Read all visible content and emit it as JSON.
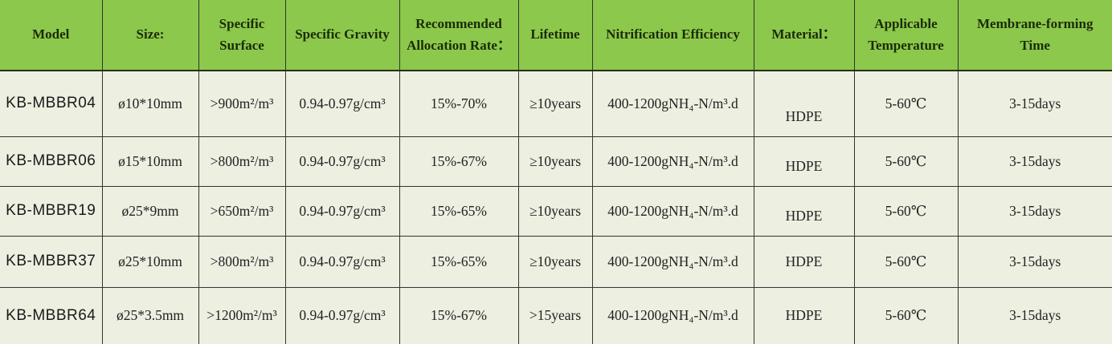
{
  "colors": {
    "header_background": "#8CC84B",
    "header_text": "#1a2b08",
    "body_background": "#EDEFE1",
    "body_text": "#222222",
    "border": "#333333"
  },
  "table": {
    "columns": [
      {
        "key": "model",
        "label": "Model"
      },
      {
        "key": "size",
        "label": "Size:"
      },
      {
        "key": "specific_surface",
        "label": "Specific Surface"
      },
      {
        "key": "specific_gravity",
        "label": "Specific Gravity"
      },
      {
        "key": "allocation_rate",
        "label": "Recommended Allocation Rate："
      },
      {
        "key": "lifetime",
        "label": "Lifetime"
      },
      {
        "key": "nitrification",
        "label": "Nitrification Efficiency"
      },
      {
        "key": "material",
        "label": "Material："
      },
      {
        "key": "temperature",
        "label": "Applicable Temperature"
      },
      {
        "key": "membrane_time",
        "label": "Membrane-forming Time"
      }
    ],
    "rows": [
      {
        "model": "KB-MBBR04",
        "size": "ø10*10mm",
        "specific_surface": ">900m²/m³",
        "specific_gravity": "0.94-0.97g/cm³",
        "allocation_rate": "15%-70%",
        "lifetime": "≥10years",
        "nitrification": "400-1200gNH₄-N/m³.d",
        "material": "HDPE",
        "temperature": "5-60℃",
        "membrane_time": "3-15days"
      },
      {
        "model": "KB-MBBR06",
        "size": "ø15*10mm",
        "specific_surface": ">800m²/m³",
        "specific_gravity": "0.94-0.97g/cm³",
        "allocation_rate": "15%-67%",
        "lifetime": "≥10years",
        "nitrification": "400-1200gNH₄-N/m³.d",
        "material": "HDPE",
        "temperature": "5-60℃",
        "membrane_time": "3-15days"
      },
      {
        "model": "KB-MBBR19",
        "size": "ø25*9mm",
        "specific_surface": ">650m²/m³",
        "specific_gravity": "0.94-0.97g/cm³",
        "allocation_rate": "15%-65%",
        "lifetime": "≥10years",
        "nitrification": "400-1200gNH₄-N/m³.d",
        "material": "HDPE",
        "temperature": "5-60℃",
        "membrane_time": "3-15days"
      },
      {
        "model": "KB-MBBR37",
        "size": "ø25*10mm",
        "specific_surface": ">800m²/m³",
        "specific_gravity": "0.94-0.97g/cm³",
        "allocation_rate": "15%-65%",
        "lifetime": "≥10years",
        "nitrification": "400-1200gNH₄-N/m³.d",
        "material": "HDPE",
        "temperature": "5-60℃",
        "membrane_time": "3-15days"
      },
      {
        "model": "KB-MBBR64",
        "size": "ø25*3.5mm",
        "specific_surface": ">1200m²/m³",
        "specific_gravity": "0.94-0.97g/cm³",
        "allocation_rate": "15%-67%",
        "lifetime": ">15years",
        "nitrification": "400-1200gNH₄-N/m³.d",
        "material": "HDPE",
        "temperature": "5-60℃",
        "membrane_time": "3-15days"
      }
    ]
  },
  "chart_data": {
    "type": "table",
    "title": "MBBR biofilm carrier specification table",
    "columns": [
      "Model",
      "Size:",
      "Specific Surface",
      "Specific Gravity",
      "Recommended Allocation Rate：",
      "Lifetime",
      "Nitrification Efficiency",
      "Material：",
      "Applicable Temperature",
      "Membrane-forming Time"
    ],
    "rows": [
      [
        "KB-MBBR04",
        "ø10*10mm",
        ">900m²/m³",
        "0.94-0.97g/cm³",
        "15%-70%",
        "≥10years",
        "400-1200gNH₄-N/m³.d",
        "HDPE",
        "5-60℃",
        "3-15days"
      ],
      [
        "KB-MBBR06",
        "ø15*10mm",
        ">800m²/m³",
        "0.94-0.97g/cm³",
        "15%-67%",
        "≥10years",
        "400-1200gNH₄-N/m³.d",
        "HDPE",
        "5-60℃",
        "3-15days"
      ],
      [
        "KB-MBBR19",
        "ø25*9mm",
        ">650m²/m³",
        "0.94-0.97g/cm³",
        "15%-65%",
        "≥10years",
        "400-1200gNH₄-N/m³.d",
        "HDPE",
        "5-60℃",
        "3-15days"
      ],
      [
        "KB-MBBR37",
        "ø25*10mm",
        ">800m²/m³",
        "0.94-0.97g/cm³",
        "15%-65%",
        "≥10years",
        "400-1200gNH₄-N/m³.d",
        "HDPE",
        "5-60℃",
        "3-15days"
      ],
      [
        "KB-MBBR64",
        "ø25*3.5mm",
        ">1200m²/m³",
        "0.94-0.97g/cm³",
        "15%-67%",
        ">15years",
        "400-1200gNH₄-N/m³.d",
        "HDPE",
        "5-60℃",
        "3-15days"
      ]
    ]
  }
}
